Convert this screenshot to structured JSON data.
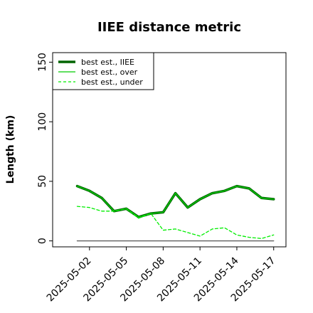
{
  "chart_data": {
    "type": "line",
    "title": "IIEE distance metric",
    "xlabel": "",
    "ylabel": "Length (km)",
    "x": [
      "2025-05-01",
      "2025-05-02",
      "2025-05-03",
      "2025-05-04",
      "2025-05-05",
      "2025-05-06",
      "2025-05-07",
      "2025-05-08",
      "2025-05-09",
      "2025-05-10",
      "2025-05-11",
      "2025-05-12",
      "2025-05-13",
      "2025-05-14",
      "2025-05-15",
      "2025-05-16",
      "2025-05-17"
    ],
    "xticks": [
      "2025-05-02",
      "2025-05-05",
      "2025-05-08",
      "2025-05-11",
      "2025-05-14",
      "2025-05-17"
    ],
    "xlim": [
      "2025-04-29",
      "2025-05-18"
    ],
    "ylim": [
      -5,
      158
    ],
    "yticks": [
      0,
      50,
      100,
      150
    ],
    "grid": false,
    "legend_position": "top-left",
    "series": [
      {
        "name": "best est., IIEE",
        "color": "#006400",
        "style": "solid-thick",
        "values": [
          46,
          42,
          36,
          25,
          27,
          20,
          23,
          24,
          40,
          28,
          35,
          40,
          42,
          46,
          44,
          36,
          35
        ]
      },
      {
        "name": "best est., over",
        "color": "#00cc00",
        "style": "solid",
        "values": [
          46,
          42,
          36,
          25,
          27,
          20,
          23,
          24,
          40,
          28,
          35,
          40,
          42,
          46,
          44,
          36,
          35
        ]
      },
      {
        "name": "best est., under",
        "color": "#00ee00",
        "style": "dashed",
        "values": [
          29,
          28,
          25,
          25,
          27,
          19,
          23,
          9,
          10,
          7,
          4,
          10,
          11,
          5,
          3,
          2,
          5
        ]
      },
      {
        "name": "",
        "color": "#555555",
        "style": "reference",
        "values": [
          0,
          0,
          0,
          0,
          0,
          0,
          0,
          0,
          0,
          0,
          0,
          0,
          0,
          0,
          0,
          0,
          0
        ]
      }
    ]
  }
}
